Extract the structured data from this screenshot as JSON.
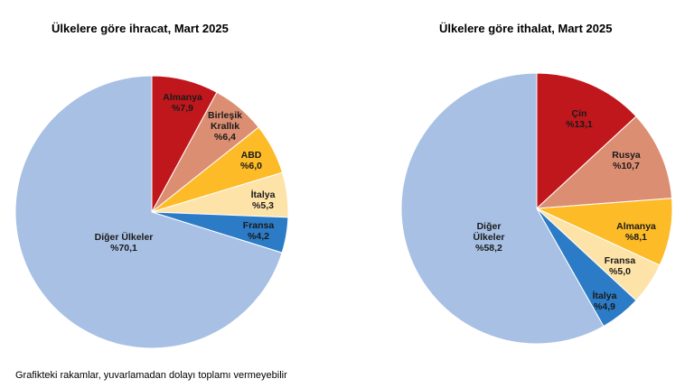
{
  "chart_data": [
    {
      "type": "pie",
      "title": "Ülkelere göre ihracat, Mart 2025",
      "slices": [
        {
          "name": "Almanya",
          "label": [
            "Almanya",
            "%7,9"
          ],
          "value": 7.9,
          "color": "#c0171c"
        },
        {
          "name": "Birleşik Krallık",
          "label": [
            "Birleşik",
            "Krallık",
            "%6,4"
          ],
          "value": 6.4,
          "color": "#dc8e73"
        },
        {
          "name": "ABD",
          "label": [
            "ABD",
            "%6,0"
          ],
          "value": 6.0,
          "color": "#fdbb27"
        },
        {
          "name": "İtalya",
          "label": [
            "İtalya",
            "%5,3"
          ],
          "value": 5.3,
          "color": "#fde3a8"
        },
        {
          "name": "Fransa",
          "label": [
            "Fransa",
            "%4,2"
          ],
          "value": 4.2,
          "color": "#2b7bc6"
        },
        {
          "name": "Diğer Ülkeler",
          "label": [
            "Diğer Ülkeler",
            "%70,1"
          ],
          "value": 70.1,
          "color": "#a7c0e4"
        }
      ]
    },
    {
      "type": "pie",
      "title": "Ülkelere göre ithalat, Mart 2025",
      "slices": [
        {
          "name": "Çin",
          "label": [
            "Çin",
            "%13,1"
          ],
          "value": 13.1,
          "color": "#c0171c"
        },
        {
          "name": "Rusya",
          "label": [
            "Rusya",
            "%10,7"
          ],
          "value": 10.7,
          "color": "#dc8e73"
        },
        {
          "name": "Almanya",
          "label": [
            "Almanya",
            "%8,1"
          ],
          "value": 8.1,
          "color": "#fdbb27"
        },
        {
          "name": "Fransa",
          "label": [
            "Fransa",
            "%5,0"
          ],
          "value": 5.0,
          "color": "#fde3a8"
        },
        {
          "name": "İtalya",
          "label": [
            "İtalya",
            "%4,9"
          ],
          "value": 4.9,
          "color": "#2b7bc6"
        },
        {
          "name": "Diğer Ülkeler",
          "label": [
            "Diğer",
            "Ülkeler",
            "%58,2"
          ],
          "value": 58.2,
          "color": "#a7c0e4"
        }
      ]
    }
  ],
  "footnote": "Grafikteki rakamlar, yuvarlamadan dolayı toplamı vermeyebilir"
}
